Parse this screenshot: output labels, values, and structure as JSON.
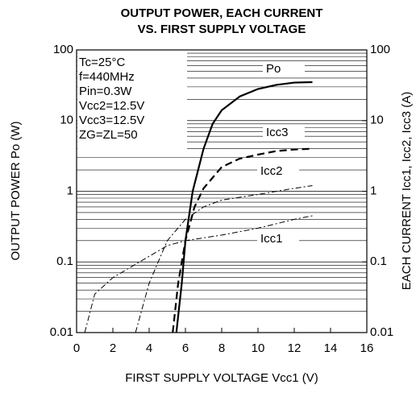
{
  "chart_data": {
    "type": "line",
    "title": [
      "OUTPUT POWER, EACH CURRENT",
      "VS. FIRST SUPPLY VOLTAGE"
    ],
    "xlabel": "FIRST SUPPLY VOLTAGE  Vcc1 (V)",
    "ylabel": "OUTPUT POWER  Po (W)",
    "y2label": "EACH CURRENT  Icc1, Icc2, Icc3 (A)",
    "xlim": [
      0,
      16
    ],
    "xticks": [
      0,
      2,
      4,
      6,
      8,
      10,
      12,
      14,
      16
    ],
    "ylim": [
      0.01,
      100
    ],
    "yticks": [
      0.01,
      0.1,
      1,
      10,
      100
    ],
    "y2lim": [
      0.01,
      100
    ],
    "y2ticks": [
      0.01,
      0.1,
      1,
      10,
      100
    ],
    "log_y": true,
    "grid": true,
    "annotations": [
      "Tc=25°C",
      "f=440MHz",
      "Pin=0.3W",
      "Vcc2=12.5V",
      "Vcc3=12.5V",
      "ZG=ZL=50"
    ],
    "series": [
      {
        "name": "Po",
        "color": "#000000",
        "line_style": "solid",
        "line_width": 2.2,
        "x": [
          5.5,
          5.8,
          6,
          6.4,
          7,
          7.5,
          8,
          9,
          10,
          11,
          12,
          13
        ],
        "values": [
          0.01,
          0.05,
          0.2,
          1,
          4,
          9,
          14,
          22,
          28,
          32,
          34.5,
          35
        ]
      },
      {
        "name": "Icc3",
        "color": "#000000",
        "line_style": "dashed",
        "line_width": 2.2,
        "axis": "y2",
        "x": [
          5.3,
          5.6,
          6,
          6.5,
          7,
          8,
          9,
          10,
          11,
          12,
          13
        ],
        "values": [
          0.01,
          0.05,
          0.2,
          0.6,
          1.1,
          2.2,
          2.9,
          3.3,
          3.7,
          3.9,
          4
        ]
      },
      {
        "name": "Icc2",
        "color": "#000000",
        "line_style": "dashdot",
        "line_width": 1,
        "axis": "y2",
        "x": [
          3.25,
          4,
          5,
          6,
          7,
          8,
          10,
          12,
          13
        ],
        "values": [
          0.01,
          0.05,
          0.2,
          0.4,
          0.6,
          0.75,
          0.9,
          1.1,
          1.2
        ]
      },
      {
        "name": "Icc1",
        "color": "#000000",
        "line_style": "dashdot",
        "line_width": 1,
        "axis": "y2",
        "x": [
          0.45,
          1,
          2,
          4,
          5,
          6,
          8,
          10,
          12,
          13
        ],
        "values": [
          0.01,
          0.035,
          0.06,
          0.12,
          0.17,
          0.2,
          0.24,
          0.3,
          0.4,
          0.45
        ]
      }
    ]
  }
}
